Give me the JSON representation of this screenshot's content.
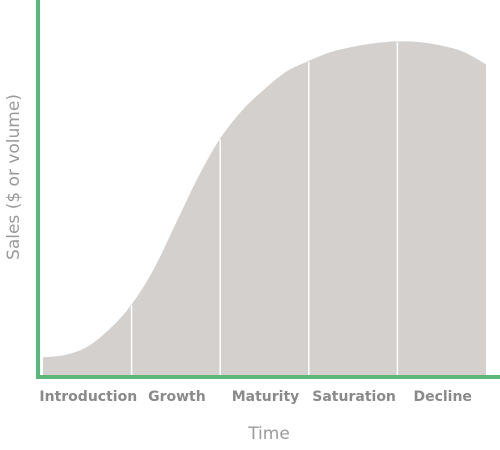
{
  "chart_data": {
    "type": "area",
    "title": "",
    "xlabel": "Time",
    "ylabel": "Sales ($ or volume)",
    "categories": [
      "Introduction",
      "Growth",
      "Maturity",
      "Saturation",
      "Decline"
    ],
    "stage_boundaries": [
      0,
      1,
      2,
      3,
      4,
      5
    ],
    "series": [
      {
        "x": [
          0,
          0.25,
          0.5,
          0.75,
          1.0,
          1.25,
          1.5,
          1.75,
          2.0,
          2.25,
          2.5,
          2.75,
          3.0,
          3.25,
          3.5,
          3.75,
          4.0,
          4.25,
          4.5,
          4.75,
          5.0
        ],
        "values": [
          5,
          5.7,
          8,
          13,
          20,
          30,
          43,
          56,
          67,
          75,
          81,
          86,
          89,
          91.5,
          93,
          94,
          94.5,
          94.3,
          93.3,
          91.5,
          88
        ]
      }
    ],
    "xlim": [
      0,
      5
    ],
    "ylim": [
      0,
      100
    ],
    "grid": false,
    "legend": "none",
    "colors": {
      "fill": "#d3d0cd",
      "axis": "#5cb87a",
      "divider": "#ffffff",
      "stage_text": "#8a8a8a",
      "axis_text": "#9a9a9a"
    }
  }
}
